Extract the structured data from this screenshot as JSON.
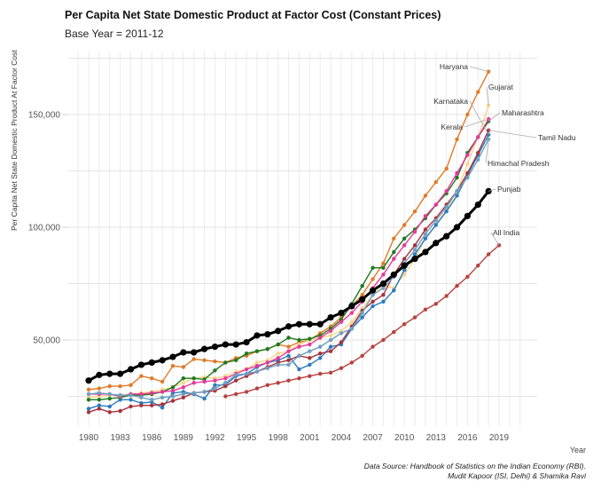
{
  "chart_data": {
    "type": "line",
    "title": "Per Capita Net State Domestic Product at Factor Cost (Constant Prices)",
    "subtitle": "Base Year = 2011-12",
    "xlabel": "Year",
    "ylabel": "Per Capita Net State Domestic Product At Factor Cost",
    "caption": [
      "Data Source: Handbook of Statistics on the Indian Economy (RBI).",
      "Mudit Kapoor (ISI, Delhi) & Shamika Ravi"
    ],
    "xlim": [
      1978,
      2021
    ],
    "ylim": [
      10000,
      177000
    ],
    "x_ticks": [
      1980,
      1983,
      1986,
      1989,
      1992,
      1995,
      1998,
      2001,
      2004,
      2007,
      2010,
      2013,
      2016,
      2019
    ],
    "x_tick_labels": [
      "1980",
      "1983",
      "1986",
      "1989",
      "1992",
      "1995",
      "1998",
      "2001",
      "2004",
      "2007",
      "2010",
      "2013",
      "2016",
      "2019"
    ],
    "y_ticks": [
      50000,
      100000,
      150000
    ],
    "y_tick_labels": [
      "50,000",
      "100,000",
      "150,000"
    ],
    "y_minor_gridlines": [
      25000,
      75000,
      125000,
      175000
    ],
    "grid": true,
    "legend": "direct-labels-right",
    "series": [
      {
        "name": "Haryana",
        "color": "#e07b29",
        "start": 1980,
        "values": [
          28000,
          28500,
          29500,
          29500,
          30000,
          34000,
          33000,
          31500,
          38500,
          38000,
          41500,
          41000,
          40500,
          40000,
          42000,
          43000,
          45000,
          46000,
          48000,
          47000,
          49000,
          50000,
          53000,
          56000,
          60000,
          65000,
          70000,
          77000,
          84000,
          95000,
          101000,
          107000,
          114000,
          120000,
          126000,
          139000,
          150000,
          160000,
          169000
        ]
      },
      {
        "name": "Gujarat",
        "color": "#f6d68a",
        "start": 1980,
        "values": [
          24500,
          25000,
          25500,
          25500,
          26000,
          26500,
          27000,
          28000,
          29000,
          31000,
          33000,
          33500,
          33000,
          34000,
          36000,
          37000,
          40000,
          41000,
          44000,
          45000,
          48000,
          50000,
          51000,
          52000,
          54000,
          58000,
          64000,
          70000,
          74000,
          73000,
          79000,
          86000,
          95000,
          101000,
          108000,
          116000,
          128000,
          140000,
          154000
        ]
      },
      {
        "name": "Karnataka",
        "color": "#2d7bbf",
        "start": 1980,
        "values": [
          19500,
          21000,
          20500,
          23500,
          23500,
          22000,
          22500,
          20000,
          26500,
          27000,
          26000,
          24000,
          30000,
          30000,
          34000,
          35000,
          38000,
          40000,
          41000,
          43000,
          37000,
          39000,
          42000,
          47000,
          48000,
          55000,
          60000,
          65000,
          67000,
          72000,
          81000,
          88000,
          95000,
          101000,
          107000,
          114000,
          123000,
          132000,
          141000
        ]
      },
      {
        "name": "Maharashtra",
        "color": "#1e7a1e",
        "start": 1980,
        "values": [
          23500,
          23500,
          24000,
          24500,
          25500,
          25500,
          26000,
          27000,
          29000,
          33000,
          33000,
          32500,
          36500,
          40000,
          41000,
          44000,
          45000,
          46000,
          48000,
          51000,
          50000,
          50500,
          52000,
          55000,
          59000,
          66000,
          74000,
          82000,
          82000,
          89000,
          95000,
          99000,
          104000,
          110000,
          115000,
          122000,
          133000,
          140000,
          147000
        ]
      },
      {
        "name": "Kerala",
        "color": "#e6389a",
        "start": 1980,
        "values": [
          26000,
          26000,
          26000,
          25000,
          26000,
          26000,
          26500,
          27000,
          27500,
          29000,
          31000,
          31500,
          32000,
          33000,
          35000,
          37000,
          38500,
          40000,
          42000,
          45000,
          47000,
          48000,
          51000,
          54000,
          58000,
          62000,
          67000,
          73000,
          79000,
          86000,
          92000,
          98000,
          105000,
          110000,
          116000,
          124000,
          132000,
          140000,
          148000
        ]
      },
      {
        "name": "Tamil Nadu",
        "color": "#a8323c",
        "start": 1980,
        "values": [
          18000,
          19500,
          18000,
          18500,
          20500,
          21000,
          21000,
          21500,
          23000,
          24500,
          26500,
          27000,
          27500,
          29500,
          32000,
          34000,
          36000,
          38000,
          40000,
          41000,
          43000,
          42000,
          44000,
          45000,
          49000,
          56000,
          63000,
          67000,
          70000,
          79000,
          86000,
          92000,
          99000,
          104000,
          110000,
          116000,
          124000,
          133000,
          143000
        ]
      },
      {
        "name": "Himachal Pradesh",
        "color": "#6f9fbf",
        "start": 1980,
        "values": [
          26000,
          26500,
          26000,
          25500,
          25500,
          24500,
          23500,
          24500,
          25000,
          26000,
          26500,
          27000,
          28500,
          31000,
          34500,
          35000,
          36000,
          37500,
          39000,
          39000,
          43000,
          45000,
          47000,
          50000,
          53000,
          55000,
          62000,
          70000,
          73000,
          78000,
          84000,
          90000,
          97000,
          103000,
          109000,
          116000,
          122000,
          130000,
          139000
        ]
      },
      {
        "name": "Punjab",
        "color": "#000000",
        "start": 1980,
        "values": [
          32000,
          34500,
          35000,
          35000,
          37000,
          39000,
          40000,
          41000,
          42500,
          44500,
          44500,
          46000,
          47000,
          48000,
          48000,
          49000,
          52000,
          52500,
          54000,
          56000,
          57000,
          57000,
          57000,
          60000,
          62000,
          65000,
          68000,
          72000,
          75000,
          79000,
          83000,
          86000,
          89000,
          93000,
          96000,
          100000,
          105000,
          110000,
          116000
        ]
      },
      {
        "name": "All India",
        "color": "#b7413e",
        "start": 1993,
        "values": [
          25000,
          26000,
          27000,
          28500,
          30000,
          31000,
          32000,
          33000,
          34000,
          35000,
          35500,
          37500,
          40000,
          43000,
          47000,
          50000,
          53500,
          57000,
          60000,
          63500,
          66000,
          69500,
          74000,
          78000,
          83000,
          88000,
          92000
        ]
      }
    ],
    "direct_labels": [
      "Haryana",
      "Gujarat",
      "Karnataka",
      "Maharashtra",
      "Kerala",
      "Tamil Nadu",
      "Himachal Pradesh",
      "Punjab",
      "All India"
    ]
  }
}
